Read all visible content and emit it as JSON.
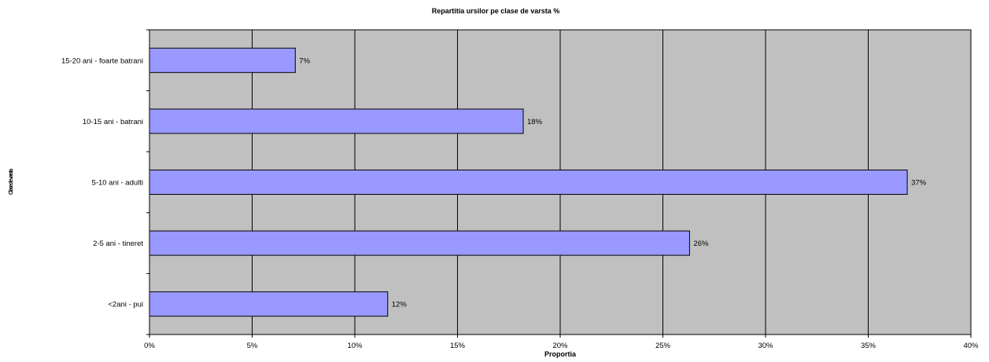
{
  "chart_data": {
    "type": "bar",
    "orientation": "horizontal",
    "title": "Repartitia ursilor pe clase de varsta %",
    "xlabel": "Proportia",
    "ylabel": "Clase de varsta",
    "categories": [
      "15-20 ani - foarte batrani",
      "10-15 ani - batrani",
      "5-10 ani - adulti",
      "2-5 ani - tineret",
      "<2ani - pui"
    ],
    "values": [
      0.071,
      0.182,
      0.369,
      0.263,
      0.116
    ],
    "data_labels": [
      "7%",
      "18%",
      "37%",
      "26%",
      "12%"
    ],
    "xlim": [
      0,
      0.4
    ],
    "x_ticks": [
      0,
      0.05,
      0.1,
      0.15,
      0.2,
      0.25,
      0.3,
      0.35,
      0.4
    ],
    "x_tick_labels": [
      "0%",
      "5%",
      "10%",
      "15%",
      "20%",
      "25%",
      "30%",
      "35%",
      "40%"
    ],
    "grid": "vertical",
    "legend": "none",
    "colors": {
      "plot_background": "#c0c0c0",
      "bar_fill": "#9999ff",
      "bar_stroke": "#000000",
      "grid": "#000000"
    }
  }
}
